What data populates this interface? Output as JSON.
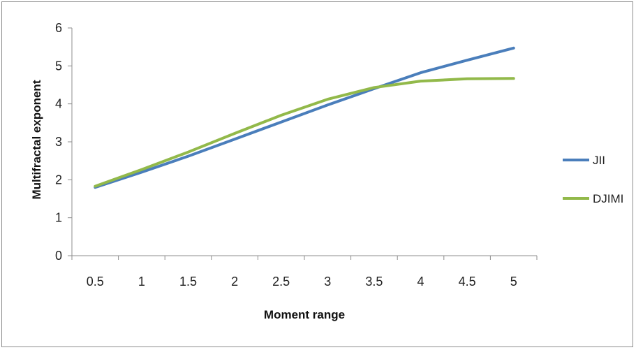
{
  "chart_data": {
    "type": "line",
    "x": [
      0.5,
      1,
      1.5,
      2,
      2.5,
      3,
      3.5,
      4,
      4.5,
      5
    ],
    "categories": [
      "0.5",
      "1",
      "1.5",
      "2",
      "2.5",
      "3",
      "3.5",
      "4",
      "4.5",
      "5"
    ],
    "series": [
      {
        "name": "JII",
        "color": "#4a7ebb",
        "values": [
          1.8,
          2.2,
          2.62,
          3.07,
          3.52,
          3.97,
          4.4,
          4.82,
          5.15,
          5.47
        ]
      },
      {
        "name": "DJIMI",
        "color": "#92b94a",
        "values": [
          1.83,
          2.27,
          2.73,
          3.22,
          3.7,
          4.12,
          4.43,
          4.6,
          4.66,
          4.67
        ]
      }
    ],
    "xlabel": "Moment range",
    "ylabel": "Multifractal  exponent",
    "ylim": [
      0,
      6
    ],
    "yticks": [
      "0",
      "1",
      "2",
      "3",
      "4",
      "5",
      "6"
    ],
    "grid": false,
    "legend": "right"
  }
}
